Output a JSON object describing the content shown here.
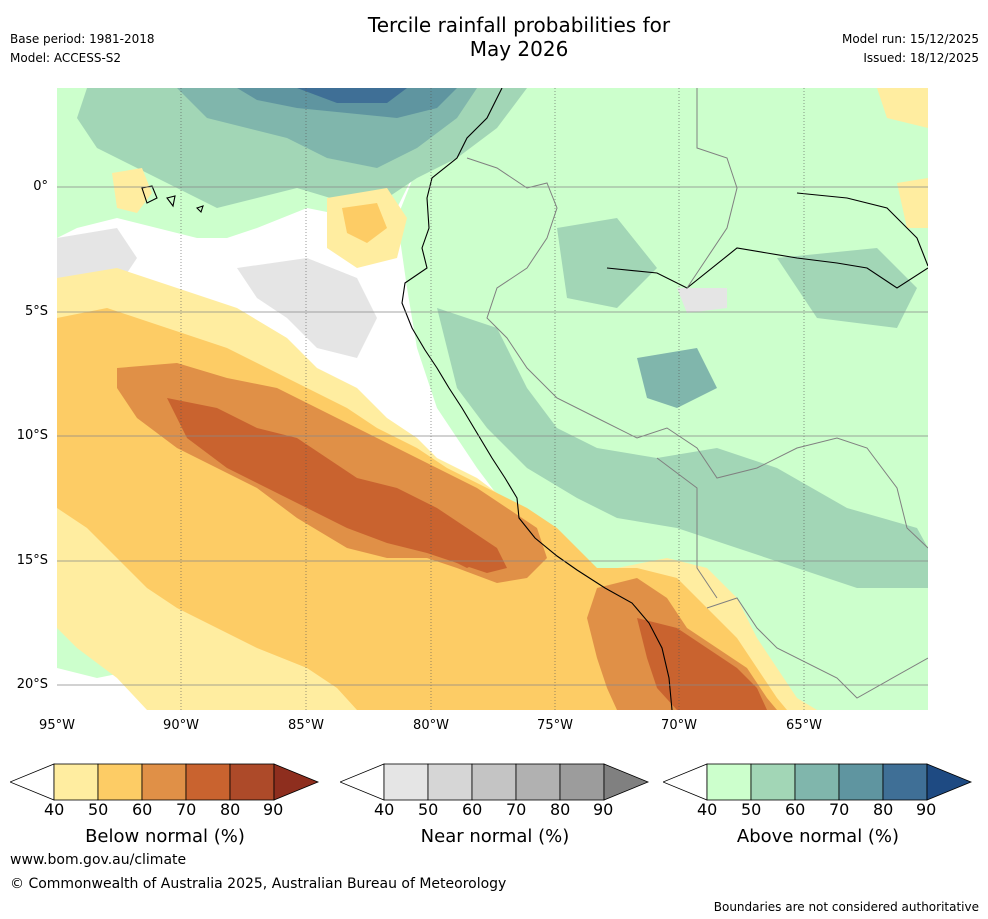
{
  "header": {
    "title_line1": "Tercile rainfall probabilities for",
    "title_line2": "May 2026",
    "base_period": "Base period: 1981-2018",
    "model": "Model: ACCESS-S2",
    "model_run": "Model run: 15/12/2025",
    "issued": "Issued: 18/12/2025"
  },
  "map": {
    "lat_labels": [
      "0°",
      "5°S",
      "10°S",
      "15°S",
      "20°S"
    ],
    "lon_labels": [
      "95°W",
      "90°W",
      "85°W",
      "80°W",
      "75°W",
      "70°W",
      "65°W"
    ]
  },
  "colorbars": [
    {
      "label": "Below normal (%)",
      "ticks": [
        "40",
        "50",
        "60",
        "70",
        "80",
        "90"
      ],
      "colors": [
        "#ffeda0",
        "#fdcc65",
        "#e09047",
        "#c9632f",
        "#ad4a29",
        "#8e2e1e"
      ]
    },
    {
      "label": "Near normal (%)",
      "ticks": [
        "40",
        "50",
        "60",
        "70",
        "80",
        "90"
      ],
      "colors": [
        "#e5e5e5",
        "#d6d6d6",
        "#c4c4c4",
        "#b1b1b1",
        "#9c9c9c",
        "#808080"
      ]
    },
    {
      "label": "Above normal (%)",
      "ticks": [
        "40",
        "50",
        "60",
        "70",
        "80",
        "90"
      ],
      "colors": [
        "#ccffcc",
        "#a2d6b6",
        "#80b6ac",
        "#5f95a0",
        "#3f6f96",
        "#1e4a82"
      ]
    }
  ],
  "footer": {
    "url": "www.bom.gov.au/climate",
    "copyright": "© Commonwealth of Australia 2025, Australian Bureau of Meteorology",
    "note": "Boundaries are not considered authoritative"
  }
}
